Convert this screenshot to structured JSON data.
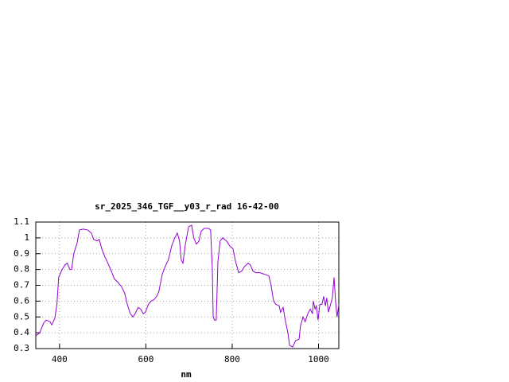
{
  "chart_data": {
    "type": "line",
    "title": "sr_2025_346_TGF__y03_r_rad 16-42-00",
    "x_label": "nm",
    "color": "#9400d3",
    "grid": true,
    "xlim": [
      345,
      1047
    ],
    "ylim": [
      0.3,
      1.1
    ],
    "xticks": [
      400,
      600,
      800,
      1000
    ],
    "yticks": [
      0.3,
      0.4,
      0.5,
      0.6,
      0.7,
      0.8,
      0.9,
      1,
      1.1
    ],
    "x": [
      345,
      354,
      363,
      369,
      378,
      382,
      389,
      394,
      398,
      406,
      413,
      418,
      424,
      428,
      433,
      441,
      446,
      455,
      465,
      474,
      479,
      487,
      492,
      498,
      505,
      512,
      520,
      527,
      535,
      544,
      551,
      557,
      564,
      570,
      575,
      582,
      588,
      594,
      599,
      606,
      612,
      619,
      625,
      630,
      638,
      645,
      652,
      660,
      667,
      673,
      678,
      682,
      686,
      691,
      699,
      706,
      711,
      717,
      723,
      728,
      735,
      745,
      750,
      754,
      756,
      759,
      763,
      767,
      772,
      778,
      787,
      794,
      802,
      807,
      815,
      822,
      829,
      837,
      842,
      848,
      855,
      864,
      875,
      885,
      890,
      896,
      901,
      909,
      912,
      918,
      923,
      929,
      933,
      940,
      947,
      955,
      958,
      964,
      969,
      975,
      981,
      986,
      988,
      992,
      995,
      999,
      1003,
      1008,
      1012,
      1016,
      1019,
      1023,
      1028,
      1032,
      1036,
      1040,
      1043,
      1047
    ],
    "values": [
      0.38,
      0.4,
      0.46,
      0.48,
      0.47,
      0.45,
      0.49,
      0.58,
      0.75,
      0.8,
      0.83,
      0.84,
      0.8,
      0.8,
      0.9,
      0.97,
      1.05,
      1.055,
      1.05,
      1.03,
      0.99,
      0.98,
      0.99,
      0.93,
      0.88,
      0.84,
      0.79,
      0.74,
      0.72,
      0.69,
      0.65,
      0.58,
      0.52,
      0.5,
      0.52,
      0.56,
      0.55,
      0.52,
      0.53,
      0.58,
      0.6,
      0.61,
      0.63,
      0.66,
      0.77,
      0.82,
      0.86,
      0.95,
      1.0,
      1.03,
      0.98,
      0.86,
      0.84,
      0.95,
      1.07,
      1.08,
      1.0,
      0.96,
      0.98,
      1.04,
      1.06,
      1.06,
      1.05,
      0.8,
      0.5,
      0.48,
      0.48,
      0.85,
      0.98,
      1.0,
      0.98,
      0.95,
      0.93,
      0.86,
      0.78,
      0.79,
      0.82,
      0.84,
      0.83,
      0.79,
      0.78,
      0.78,
      0.77,
      0.76,
      0.7,
      0.6,
      0.58,
      0.57,
      0.53,
      0.56,
      0.48,
      0.4,
      0.32,
      0.31,
      0.35,
      0.36,
      0.44,
      0.5,
      0.47,
      0.52,
      0.55,
      0.52,
      0.6,
      0.55,
      0.57,
      0.48,
      0.58,
      0.58,
      0.63,
      0.57,
      0.62,
      0.53,
      0.58,
      0.62,
      0.75,
      0.58,
      0.5,
      0.58
    ]
  }
}
